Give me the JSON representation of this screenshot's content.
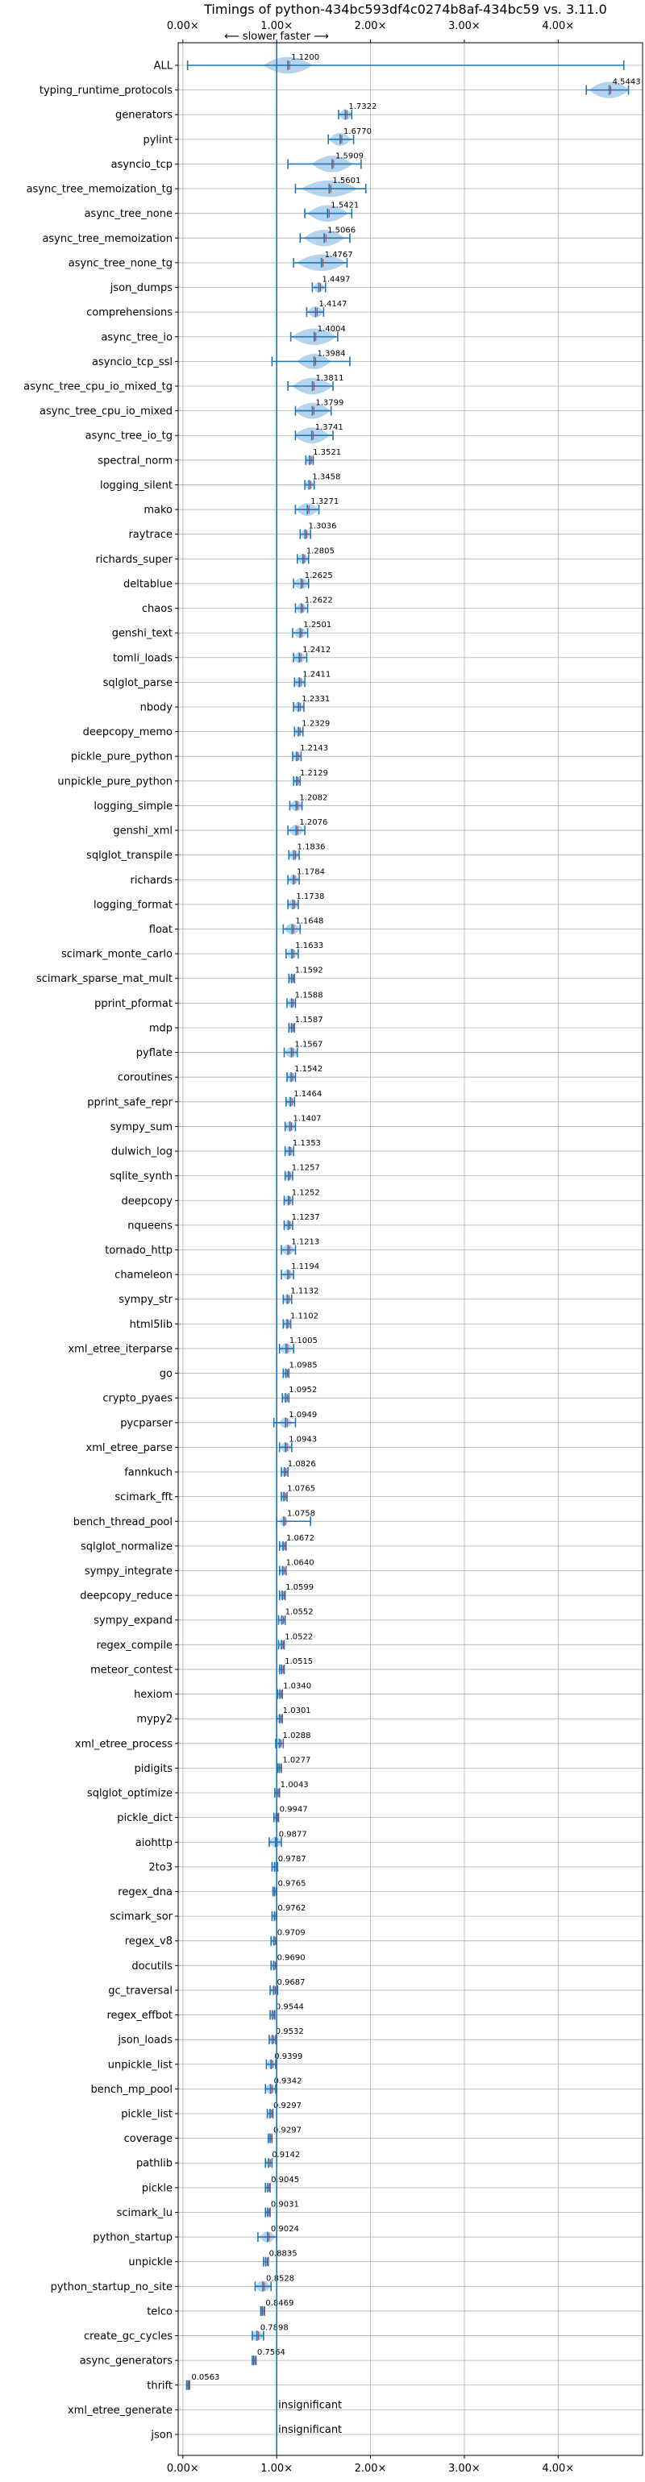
{
  "chart_data": {
    "type": "violin",
    "title": "Timings of python-434bc593df4c0274b8af-434bc59 vs. 3.11.0",
    "annotation": "⟵ slower   faster ⟶",
    "xlim": [
      -0.05,
      4.9
    ],
    "xticks": [
      0,
      1,
      2,
      3,
      4
    ],
    "xtick_labels": [
      "0.00×",
      "1.00×",
      "2.00×",
      "3.00×",
      "4.00×"
    ],
    "reference_line": 1.0,
    "grid": true,
    "colors": {
      "violin": "#a8cbea",
      "line": "#1f77b4",
      "median": "#d62728"
    },
    "rows": [
      {
        "name": "ALL",
        "value": 1.12,
        "label": "1.1200",
        "min": 0.05,
        "max": 4.7,
        "spread": 0.22
      },
      {
        "name": "typing_runtime_protocols",
        "value": 4.5443,
        "label": "4.5443",
        "min": 4.3,
        "max": 4.75,
        "spread": 0.18
      },
      {
        "name": "generators",
        "value": 1.7322,
        "label": "1.7322",
        "min": 1.66,
        "max": 1.8,
        "spread": 0.06
      },
      {
        "name": "pylint",
        "value": 1.677,
        "label": "1.6770",
        "min": 1.55,
        "max": 1.82,
        "spread": 0.1
      },
      {
        "name": "asyncio_tcp",
        "value": 1.5909,
        "label": "1.5909",
        "min": 1.12,
        "max": 1.9,
        "spread": 0.18
      },
      {
        "name": "async_tree_memoization_tg",
        "value": 1.5601,
        "label": "1.5601",
        "min": 1.2,
        "max": 1.95,
        "spread": 0.25
      },
      {
        "name": "async_tree_none",
        "value": 1.5421,
        "label": "1.5421",
        "min": 1.3,
        "max": 1.8,
        "spread": 0.18
      },
      {
        "name": "async_tree_memoization",
        "value": 1.5066,
        "label": "1.5066",
        "min": 1.25,
        "max": 1.78,
        "spread": 0.18
      },
      {
        "name": "async_tree_none_tg",
        "value": 1.4767,
        "label": "1.4767",
        "min": 1.18,
        "max": 1.75,
        "spread": 0.22
      },
      {
        "name": "json_dumps",
        "value": 1.4497,
        "label": "1.4497",
        "min": 1.38,
        "max": 1.52,
        "spread": 0.05
      },
      {
        "name": "comprehensions",
        "value": 1.4147,
        "label": "1.4147",
        "min": 1.32,
        "max": 1.5,
        "spread": 0.07
      },
      {
        "name": "async_tree_io",
        "value": 1.4004,
        "label": "1.4004",
        "min": 1.15,
        "max": 1.65,
        "spread": 0.2
      },
      {
        "name": "asyncio_tcp_ssl",
        "value": 1.3984,
        "label": "1.3984",
        "min": 0.95,
        "max": 1.78,
        "spread": 0.15
      },
      {
        "name": "async_tree_cpu_io_mixed_tg",
        "value": 1.3811,
        "label": "1.3811",
        "min": 1.12,
        "max": 1.6,
        "spread": 0.18
      },
      {
        "name": "async_tree_cpu_io_mixed",
        "value": 1.3799,
        "label": "1.3799",
        "min": 1.2,
        "max": 1.58,
        "spread": 0.16
      },
      {
        "name": "async_tree_io_tg",
        "value": 1.3741,
        "label": "1.3741",
        "min": 1.2,
        "max": 1.6,
        "spread": 0.16
      },
      {
        "name": "spectral_norm",
        "value": 1.3521,
        "label": "1.3521",
        "min": 1.31,
        "max": 1.39,
        "spread": 0.04
      },
      {
        "name": "logging_silent",
        "value": 1.3458,
        "label": "1.3458",
        "min": 1.3,
        "max": 1.4,
        "spread": 0.04
      },
      {
        "name": "mako",
        "value": 1.3271,
        "label": "1.3271",
        "min": 1.2,
        "max": 1.45,
        "spread": 0.1
      },
      {
        "name": "raytrace",
        "value": 1.3036,
        "label": "1.3036",
        "min": 1.25,
        "max": 1.36,
        "spread": 0.04
      },
      {
        "name": "richards_super",
        "value": 1.2805,
        "label": "1.2805",
        "min": 1.22,
        "max": 1.34,
        "spread": 0.05
      },
      {
        "name": "deltablue",
        "value": 1.2625,
        "label": "1.2625",
        "min": 1.18,
        "max": 1.34,
        "spread": 0.07
      },
      {
        "name": "chaos",
        "value": 1.2622,
        "label": "1.2622",
        "min": 1.2,
        "max": 1.33,
        "spread": 0.05
      },
      {
        "name": "genshi_text",
        "value": 1.2501,
        "label": "1.2501",
        "min": 1.17,
        "max": 1.33,
        "spread": 0.06
      },
      {
        "name": "tomli_loads",
        "value": 1.2412,
        "label": "1.2412",
        "min": 1.18,
        "max": 1.32,
        "spread": 0.06
      },
      {
        "name": "sqlglot_parse",
        "value": 1.2411,
        "label": "1.2411",
        "min": 1.19,
        "max": 1.3,
        "spread": 0.05
      },
      {
        "name": "nbody",
        "value": 1.2331,
        "label": "1.2331",
        "min": 1.18,
        "max": 1.29,
        "spread": 0.05
      },
      {
        "name": "deepcopy_memo",
        "value": 1.2329,
        "label": "1.2329",
        "min": 1.19,
        "max": 1.28,
        "spread": 0.04
      },
      {
        "name": "pickle_pure_python",
        "value": 1.2143,
        "label": "1.2143",
        "min": 1.17,
        "max": 1.26,
        "spread": 0.04
      },
      {
        "name": "unpickle_pure_python",
        "value": 1.2129,
        "label": "1.2129",
        "min": 1.18,
        "max": 1.25,
        "spread": 0.03
      },
      {
        "name": "logging_simple",
        "value": 1.2082,
        "label": "1.2082",
        "min": 1.14,
        "max": 1.27,
        "spread": 0.06
      },
      {
        "name": "genshi_xml",
        "value": 1.2076,
        "label": "1.2076",
        "min": 1.12,
        "max": 1.3,
        "spread": 0.07
      },
      {
        "name": "sqlglot_transpile",
        "value": 1.1836,
        "label": "1.1836",
        "min": 1.13,
        "max": 1.24,
        "spread": 0.05
      },
      {
        "name": "richards",
        "value": 1.1784,
        "label": "1.1784",
        "min": 1.12,
        "max": 1.24,
        "spread": 0.05
      },
      {
        "name": "logging_format",
        "value": 1.1738,
        "label": "1.1738",
        "min": 1.12,
        "max": 1.23,
        "spread": 0.05
      },
      {
        "name": "float",
        "value": 1.1648,
        "label": "1.1648",
        "min": 1.07,
        "max": 1.25,
        "spread": 0.07
      },
      {
        "name": "scimark_monte_carlo",
        "value": 1.1633,
        "label": "1.1633",
        "min": 1.1,
        "max": 1.23,
        "spread": 0.05
      },
      {
        "name": "scimark_sparse_mat_mult",
        "value": 1.1592,
        "label": "1.1592",
        "min": 1.13,
        "max": 1.19,
        "spread": 0.03
      },
      {
        "name": "pprint_pformat",
        "value": 1.1588,
        "label": "1.1588",
        "min": 1.11,
        "max": 1.2,
        "spread": 0.04
      },
      {
        "name": "mdp",
        "value": 1.1587,
        "label": "1.1587",
        "min": 1.13,
        "max": 1.19,
        "spread": 0.03
      },
      {
        "name": "pyflate",
        "value": 1.1567,
        "label": "1.1567",
        "min": 1.08,
        "max": 1.22,
        "spread": 0.06
      },
      {
        "name": "coroutines",
        "value": 1.1542,
        "label": "1.1542",
        "min": 1.11,
        "max": 1.2,
        "spread": 0.04
      },
      {
        "name": "pprint_safe_repr",
        "value": 1.1464,
        "label": "1.1464",
        "min": 1.1,
        "max": 1.19,
        "spread": 0.04
      },
      {
        "name": "sympy_sum",
        "value": 1.1407,
        "label": "1.1407",
        "min": 1.09,
        "max": 1.2,
        "spread": 0.05
      },
      {
        "name": "dulwich_log",
        "value": 1.1353,
        "label": "1.1353",
        "min": 1.09,
        "max": 1.18,
        "spread": 0.04
      },
      {
        "name": "sqlite_synth",
        "value": 1.1257,
        "label": "1.1257",
        "min": 1.09,
        "max": 1.17,
        "spread": 0.04
      },
      {
        "name": "deepcopy",
        "value": 1.1252,
        "label": "1.1252",
        "min": 1.08,
        "max": 1.17,
        "spread": 0.04
      },
      {
        "name": "nqueens",
        "value": 1.1237,
        "label": "1.1237",
        "min": 1.08,
        "max": 1.17,
        "spread": 0.04
      },
      {
        "name": "tornado_http",
        "value": 1.1213,
        "label": "1.1213",
        "min": 1.05,
        "max": 1.2,
        "spread": 0.06
      },
      {
        "name": "chameleon",
        "value": 1.1194,
        "label": "1.1194",
        "min": 1.05,
        "max": 1.18,
        "spread": 0.05
      },
      {
        "name": "sympy_str",
        "value": 1.1132,
        "label": "1.1132",
        "min": 1.07,
        "max": 1.16,
        "spread": 0.04
      },
      {
        "name": "html5lib",
        "value": 1.1102,
        "label": "1.1102",
        "min": 1.07,
        "max": 1.15,
        "spread": 0.04
      },
      {
        "name": "xml_etree_iterparse",
        "value": 1.1005,
        "label": "1.1005",
        "min": 1.03,
        "max": 1.18,
        "spread": 0.06
      },
      {
        "name": "go",
        "value": 1.0985,
        "label": "1.0985",
        "min": 1.07,
        "max": 1.13,
        "spread": 0.03
      },
      {
        "name": "crypto_pyaes",
        "value": 1.0952,
        "label": "1.0952",
        "min": 1.06,
        "max": 1.13,
        "spread": 0.03
      },
      {
        "name": "pycparser",
        "value": 1.0949,
        "label": "1.0949",
        "min": 0.97,
        "max": 1.2,
        "spread": 0.06
      },
      {
        "name": "xml_etree_parse",
        "value": 1.0943,
        "label": "1.0943",
        "min": 1.03,
        "max": 1.16,
        "spread": 0.05
      },
      {
        "name": "fannkuch",
        "value": 1.0826,
        "label": "1.0826",
        "min": 1.05,
        "max": 1.12,
        "spread": 0.03
      },
      {
        "name": "scimark_fft",
        "value": 1.0765,
        "label": "1.0765",
        "min": 1.05,
        "max": 1.11,
        "spread": 0.03
      },
      {
        "name": "bench_thread_pool",
        "value": 1.0758,
        "label": "1.0758",
        "min": 1.0,
        "max": 1.36,
        "spread": 0.04
      },
      {
        "name": "sqlglot_normalize",
        "value": 1.0672,
        "label": "1.0672",
        "min": 1.03,
        "max": 1.1,
        "spread": 0.03
      },
      {
        "name": "sympy_integrate",
        "value": 1.064,
        "label": "1.0640",
        "min": 1.03,
        "max": 1.1,
        "spread": 0.03
      },
      {
        "name": "deepcopy_reduce",
        "value": 1.0599,
        "label": "1.0599",
        "min": 1.03,
        "max": 1.09,
        "spread": 0.03
      },
      {
        "name": "sympy_expand",
        "value": 1.0552,
        "label": "1.0552",
        "min": 1.02,
        "max": 1.09,
        "spread": 0.03
      },
      {
        "name": "regex_compile",
        "value": 1.0522,
        "label": "1.0522",
        "min": 1.02,
        "max": 1.08,
        "spread": 0.03
      },
      {
        "name": "meteor_contest",
        "value": 1.0515,
        "label": "1.0515",
        "min": 1.03,
        "max": 1.08,
        "spread": 0.02
      },
      {
        "name": "hexiom",
        "value": 1.034,
        "label": "1.0340",
        "min": 1.01,
        "max": 1.06,
        "spread": 0.02
      },
      {
        "name": "mypy2",
        "value": 1.0301,
        "label": "1.0301",
        "min": 1.0,
        "max": 1.06,
        "spread": 0.03
      },
      {
        "name": "xml_etree_process",
        "value": 1.0288,
        "label": "1.0288",
        "min": 0.99,
        "max": 1.07,
        "spread": 0.03
      },
      {
        "name": "pidigits",
        "value": 1.0277,
        "label": "1.0277",
        "min": 1.01,
        "max": 1.05,
        "spread": 0.02
      },
      {
        "name": "sqlglot_optimize",
        "value": 1.0043,
        "label": "1.0043",
        "min": 0.98,
        "max": 1.03,
        "spread": 0.02
      },
      {
        "name": "pickle_dict",
        "value": 0.9947,
        "label": "0.9947",
        "min": 0.97,
        "max": 1.02,
        "spread": 0.02
      },
      {
        "name": "aiohttp",
        "value": 0.9877,
        "label": "0.9877",
        "min": 0.92,
        "max": 1.05,
        "spread": 0.06
      },
      {
        "name": "2to3",
        "value": 0.9787,
        "label": "0.9787",
        "min": 0.95,
        "max": 1.01,
        "spread": 0.03
      },
      {
        "name": "regex_dna",
        "value": 0.9765,
        "label": "0.9765",
        "min": 0.96,
        "max": 1.0,
        "spread": 0.02
      },
      {
        "name": "scimark_sor",
        "value": 0.9762,
        "label": "0.9762",
        "min": 0.95,
        "max": 1.0,
        "spread": 0.02
      },
      {
        "name": "regex_v8",
        "value": 0.9709,
        "label": "0.9709",
        "min": 0.94,
        "max": 1.0,
        "spread": 0.03
      },
      {
        "name": "docutils",
        "value": 0.969,
        "label": "0.9690",
        "min": 0.94,
        "max": 1.0,
        "spread": 0.03
      },
      {
        "name": "gc_traversal",
        "value": 0.9687,
        "label": "0.9687",
        "min": 0.93,
        "max": 1.01,
        "spread": 0.03
      },
      {
        "name": "regex_effbot",
        "value": 0.9544,
        "label": "0.9544",
        "min": 0.93,
        "max": 0.98,
        "spread": 0.02
      },
      {
        "name": "json_loads",
        "value": 0.9532,
        "label": "0.9532",
        "min": 0.92,
        "max": 0.99,
        "spread": 0.03
      },
      {
        "name": "unpickle_list",
        "value": 0.9399,
        "label": "0.9399",
        "min": 0.89,
        "max": 0.99,
        "spread": 0.04
      },
      {
        "name": "bench_mp_pool",
        "value": 0.9342,
        "label": "0.9342",
        "min": 0.88,
        "max": 0.99,
        "spread": 0.05
      },
      {
        "name": "pickle_list",
        "value": 0.9297,
        "label": "0.9297",
        "min": 0.9,
        "max": 0.96,
        "spread": 0.03
      },
      {
        "name": "coverage",
        "value": 0.9297,
        "label": "0.9297",
        "min": 0.91,
        "max": 0.95,
        "spread": 0.02
      },
      {
        "name": "pathlib",
        "value": 0.9142,
        "label": "0.9142",
        "min": 0.88,
        "max": 0.95,
        "spread": 0.03
      },
      {
        "name": "pickle",
        "value": 0.9045,
        "label": "0.9045",
        "min": 0.88,
        "max": 0.93,
        "spread": 0.02
      },
      {
        "name": "scimark_lu",
        "value": 0.9031,
        "label": "0.9031",
        "min": 0.88,
        "max": 0.93,
        "spread": 0.02
      },
      {
        "name": "python_startup",
        "value": 0.9024,
        "label": "0.9024",
        "min": 0.8,
        "max": 1.0,
        "spread": 0.07
      },
      {
        "name": "unpickle",
        "value": 0.8835,
        "label": "0.8835",
        "min": 0.86,
        "max": 0.91,
        "spread": 0.02
      },
      {
        "name": "python_startup_no_site",
        "value": 0.8528,
        "label": "0.8528",
        "min": 0.77,
        "max": 0.94,
        "spread": 0.07
      },
      {
        "name": "telco",
        "value": 0.8469,
        "label": "0.8469",
        "min": 0.83,
        "max": 0.87,
        "spread": 0.02
      },
      {
        "name": "create_gc_cycles",
        "value": 0.7898,
        "label": "0.7898",
        "min": 0.74,
        "max": 0.86,
        "spread": 0.06
      },
      {
        "name": "async_generators",
        "value": 0.7564,
        "label": "0.7564",
        "min": 0.74,
        "max": 0.78,
        "spread": 0.02
      },
      {
        "name": "thrift",
        "value": 0.0563,
        "label": "0.0563",
        "min": 0.04,
        "max": 0.07,
        "spread": 0.01
      },
      {
        "name": "xml_etree_generate",
        "value": null,
        "label": "insignificant"
      },
      {
        "name": "json",
        "value": null,
        "label": "insignificant"
      }
    ]
  }
}
